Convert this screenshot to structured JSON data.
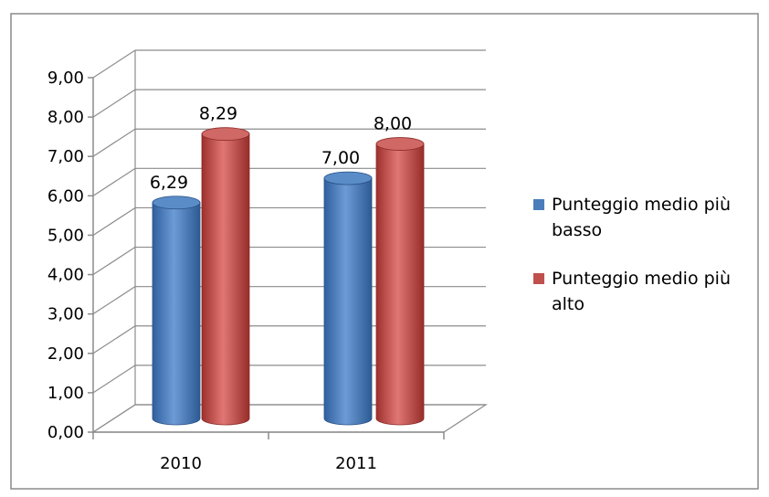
{
  "chart_data": {
    "type": "bar",
    "categories": [
      "2010",
      "2011"
    ],
    "series": [
      {
        "name": "Punteggio medio più basso",
        "values": [
          6.29,
          7.0
        ],
        "color": "#4a7ebb"
      },
      {
        "name": "Punteggio medio più alto",
        "values": [
          8.29,
          8.0
        ],
        "color": "#c0504d"
      }
    ],
    "value_labels": [
      [
        "6,29",
        "7,00"
      ],
      [
        "8,29",
        "8,00"
      ]
    ],
    "y_tick_labels": [
      "0,00",
      "1,00",
      "2,00",
      "3,00",
      "4,00",
      "5,00",
      "6,00",
      "7,00",
      "8,00",
      "9,00"
    ],
    "ylim": [
      0,
      9
    ],
    "grid": true,
    "style": "3d-cylinder",
    "legend_position": "right",
    "title": "",
    "xlabel": "",
    "ylabel": ""
  }
}
